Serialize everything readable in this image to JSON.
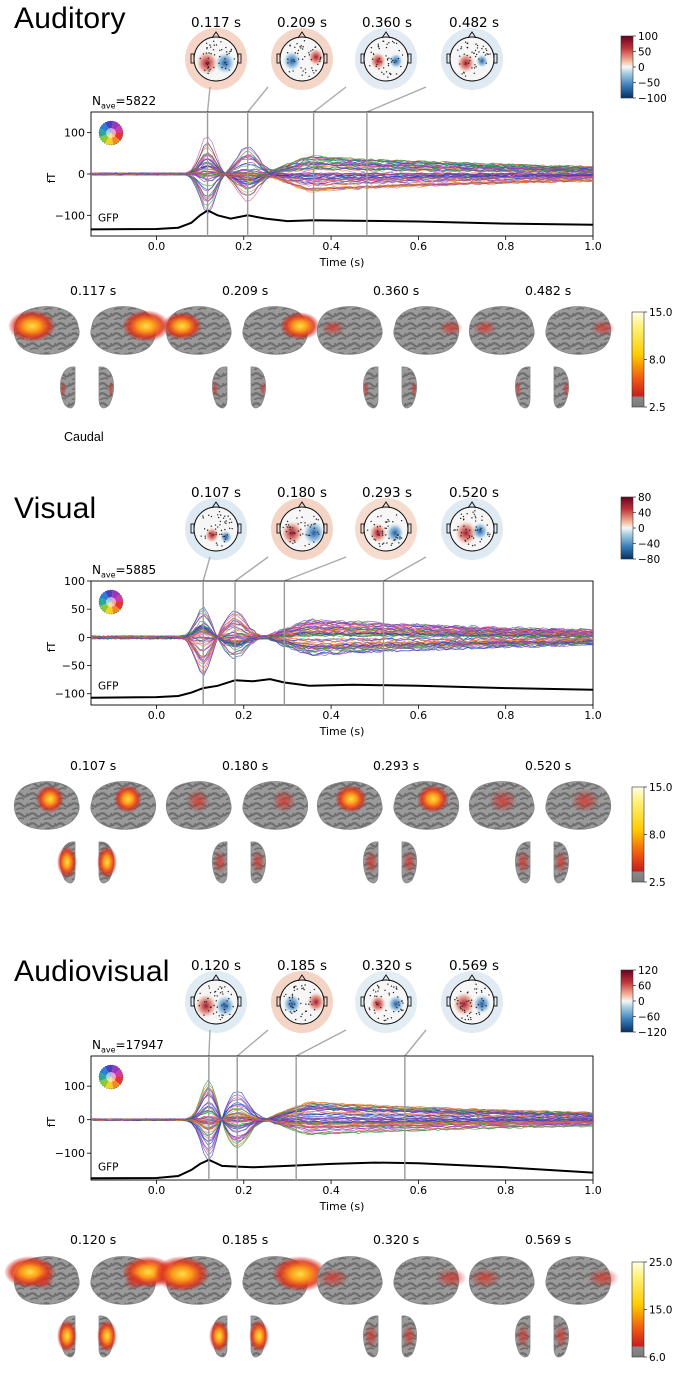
{
  "panels": [
    {
      "title": "Auditory",
      "nave_prefix": "N",
      "nave_sub": "ave",
      "nave_value": "=5822",
      "topo_times": [
        "0.117 s",
        "0.209 s",
        "0.360 s",
        "0.482 s"
      ],
      "topo_colorbar_ticks": [
        "100",
        "50",
        "0",
        "−50",
        "−100"
      ],
      "brain_times": [
        "0.117 s",
        "0.209 s",
        "0.360 s",
        "0.482 s"
      ],
      "brain_colorbar_ticks": [
        "15.0",
        "8.0",
        "2.5"
      ],
      "caudal_label": "Caudal",
      "gfp_label": "GFP"
    },
    {
      "title": "Visual",
      "nave_prefix": "N",
      "nave_sub": "ave",
      "nave_value": "=5885",
      "topo_times": [
        "0.107 s",
        "0.180 s",
        "0.293 s",
        "0.520 s"
      ],
      "topo_colorbar_ticks": [
        "80",
        "40",
        "0",
        "−40",
        "−80"
      ],
      "brain_times": [
        "0.107 s",
        "0.180 s",
        "0.293 s",
        "0.520 s"
      ],
      "brain_colorbar_ticks": [
        "15.0",
        "8.0",
        "2.5"
      ],
      "gfp_label": "GFP"
    },
    {
      "title": "Audiovisual",
      "nave_prefix": "N",
      "nave_sub": "ave",
      "nave_value": "=17947",
      "topo_times": [
        "0.120 s",
        "0.185 s",
        "0.320 s",
        "0.569 s"
      ],
      "topo_colorbar_ticks": [
        "120",
        "60",
        "0",
        "−60",
        "−120"
      ],
      "brain_times": [
        "0.120 s",
        "0.185 s",
        "0.320 s",
        "0.569 s"
      ],
      "brain_colorbar_ticks": [
        "25.0",
        "15.0",
        "6.0"
      ],
      "gfp_label": "GFP"
    }
  ],
  "chart_data": [
    {
      "type": "line",
      "xlabel": "Time (s)",
      "ylabel": "fT",
      "xlim": [
        -0.15,
        1.0
      ],
      "ylim": [
        -150,
        150
      ],
      "xticks": [
        "0.0",
        "0.2",
        "0.4",
        "0.6",
        "0.8",
        "1.0"
      ],
      "yticks": [
        "100",
        "0",
        "−100"
      ],
      "ytick_values": [
        100,
        0,
        -100
      ],
      "marker_times": [
        0.117,
        0.209,
        0.36,
        0.482
      ],
      "series": [
        {
          "name": "GFP",
          "x": [
            -0.15,
            0.0,
            0.05,
            0.08,
            0.1,
            0.117,
            0.14,
            0.17,
            0.209,
            0.25,
            0.3,
            0.36,
            0.45,
            0.6,
            0.8,
            1.0
          ],
          "y": [
            -134,
            -133,
            -130,
            -118,
            -100,
            -88,
            -100,
            -108,
            -100,
            -108,
            -114,
            -112,
            -113,
            -115,
            -120,
            -123
          ]
        }
      ],
      "colors": [
        "#1f3fbf",
        "#e0508a",
        "#2a9a3a",
        "#e08030",
        "#8a3ac0",
        "#222222"
      ]
    },
    {
      "type": "line",
      "xlabel": "Time (s)",
      "ylabel": "fT",
      "xlim": [
        -0.15,
        1.0
      ],
      "ylim": [
        -120,
        100
      ],
      "xticks": [
        "0.0",
        "0.2",
        "0.4",
        "0.6",
        "0.8",
        "1.0"
      ],
      "yticks": [
        "100",
        "50",
        "0",
        "−50",
        "−100"
      ],
      "ytick_values": [
        100,
        50,
        0,
        -50,
        -100
      ],
      "marker_times": [
        0.107,
        0.18,
        0.293,
        0.52
      ],
      "series": [
        {
          "name": "GFP",
          "x": [
            -0.15,
            0.0,
            0.05,
            0.08,
            0.107,
            0.14,
            0.18,
            0.22,
            0.26,
            0.293,
            0.35,
            0.45,
            0.6,
            0.8,
            1.0
          ],
          "y": [
            -107,
            -106,
            -104,
            -98,
            -90,
            -86,
            -76,
            -78,
            -74,
            -80,
            -86,
            -84,
            -86,
            -90,
            -93
          ]
        }
      ],
      "colors": [
        "#1f3fbf",
        "#e0508a",
        "#2a9a3a",
        "#e08030",
        "#8a3ac0",
        "#222222"
      ]
    },
    {
      "type": "line",
      "xlabel": "Time (s)",
      "ylabel": "fT",
      "xlim": [
        -0.15,
        1.0
      ],
      "ylim": [
        -180,
        190
      ],
      "xticks": [
        "0.0",
        "0.2",
        "0.4",
        "0.6",
        "0.8",
        "1.0"
      ],
      "yticks": [
        "100",
        "0",
        "−100"
      ],
      "ytick_values": [
        100,
        0,
        -100
      ],
      "marker_times": [
        0.12,
        0.185,
        0.32,
        0.569
      ],
      "series": [
        {
          "name": "GFP",
          "x": [
            -0.15,
            0.0,
            0.05,
            0.08,
            0.1,
            0.12,
            0.15,
            0.185,
            0.22,
            0.3,
            0.4,
            0.5,
            0.6,
            0.8,
            1.0
          ],
          "y": [
            -175,
            -174,
            -168,
            -150,
            -132,
            -120,
            -138,
            -140,
            -142,
            -138,
            -132,
            -128,
            -130,
            -142,
            -158
          ]
        }
      ],
      "colors": [
        "#1f3fbf",
        "#e0508a",
        "#2a9a3a",
        "#e08030",
        "#8a3ac0",
        "#222222"
      ]
    }
  ]
}
